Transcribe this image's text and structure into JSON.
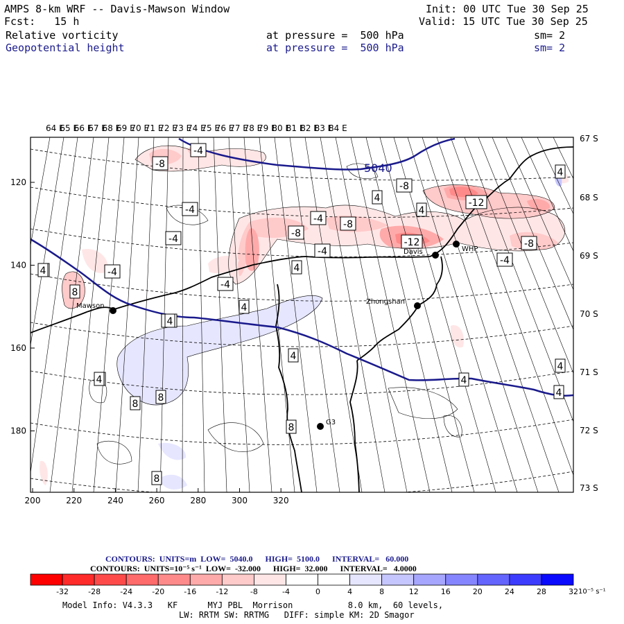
{
  "header": {
    "title": "AMPS 8-km WRF -- Davis-Mawson Window",
    "init": "Init: 00 UTC Tue 30 Sep 25",
    "fcst": "Fcst:   15 h",
    "valid": "Valid: 15 UTC Tue 30 Sep 25",
    "field1": {
      "name": "Relative vorticity",
      "level": "at pressure =  500 hPa",
      "smooth": "sm= 2"
    },
    "field2": {
      "name": "Geopotential height",
      "level": "at pressure =  500 hPa",
      "smooth": "sm= 2"
    }
  },
  "map": {
    "top_lon_labels": [
      "64 E",
      "65 E",
      "66 E",
      "67 E",
      "68 E",
      "69 E",
      "70 E",
      "71 E",
      "72 E",
      "73 E",
      "74 E",
      "75 E",
      "76 E",
      "77 E",
      "78 E",
      "79 E",
      "80 E",
      "81 E",
      "82 E",
      "83 E",
      "84 E"
    ],
    "right_lat_labels": [
      "67 S",
      "68 S",
      "69 S",
      "70 S",
      "71 S",
      "72 S",
      "73 S"
    ],
    "x_ticks": [
      "200",
      "220",
      "240",
      "260",
      "280",
      "300",
      "320"
    ],
    "y_ticks": [
      "120",
      "140",
      "160",
      "180"
    ],
    "stations": [
      "Mawson",
      "Davis",
      "WHP",
      "Zhongshan",
      "G3"
    ],
    "height_contour_label": "5040",
    "vorticity_labels": [
      "-8",
      "-4",
      "-4",
      "-4",
      "-4",
      "-4",
      "-4",
      "-8",
      "-4",
      "-8",
      "-4",
      "-8",
      "-12",
      "-12",
      "-8",
      "-4",
      "4",
      "4",
      "8",
      "4",
      "4",
      "4",
      "4",
      "4",
      "4",
      "4",
      "8",
      "8",
      "8",
      "4",
      "8",
      "8",
      "4",
      "4",
      "4",
      "4"
    ]
  },
  "contour_info": {
    "line1": "CONTOURS:  UNITS=m  LOW=  5040.0      HIGH=  5100.0      INTERVAL=   60.000",
    "line2": "CONTOURS:  UNITS=10⁻⁵ s⁻¹  LOW=  -32.000      HIGH=  32.000      INTERVAL=   4.0000"
  },
  "colorbar": {
    "labels": [
      "-32",
      "-28",
      "-24",
      "-20",
      "-16",
      "-12",
      "-8",
      "-4",
      "0",
      "4",
      "8",
      "12",
      "16",
      "20",
      "24",
      "28",
      "32"
    ],
    "colors": [
      "#ff0000",
      "#ff2a2a",
      "#ff4a4a",
      "#ff6a6a",
      "#ff8a8a",
      "#ffaaaa",
      "#ffcaca",
      "#ffe6e6",
      "#ffffff",
      "#ffffff",
      "#e6e6ff",
      "#c6c6ff",
      "#a6a6ff",
      "#8585ff",
      "#6464ff",
      "#3c3cff",
      "#0a0aff"
    ],
    "unit": "10⁻⁵ s⁻¹"
  },
  "footer": {
    "line1": "Model Info: V4.3.3   KF      MYJ PBL  Morrison           8.0 km,  60 levels,",
    "line2": "LW: RRTM SW: RRTMG   DIFF: simple KM: 2D Smagor"
  }
}
